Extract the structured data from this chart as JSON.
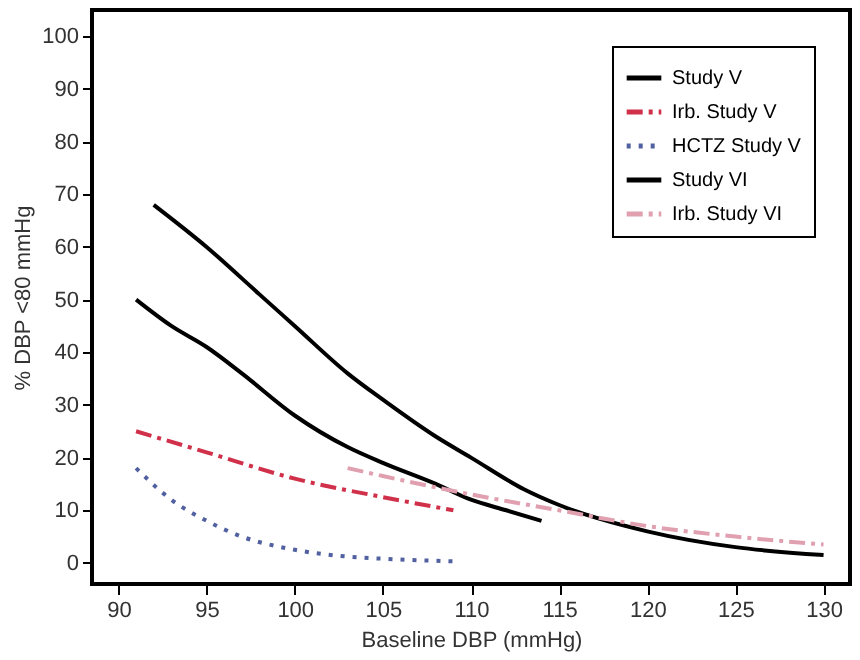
{
  "chart_data": {
    "type": "line",
    "xlabel": "Baseline DBP (mmHg)",
    "ylabel": "% DBP <80 mmHg",
    "xlim": [
      88.5,
      131.5
    ],
    "ylim": [
      -4,
      105
    ],
    "xticks": [
      90,
      95,
      100,
      105,
      110,
      115,
      120,
      125,
      130
    ],
    "yticks": [
      0,
      10,
      20,
      30,
      40,
      50,
      60,
      70,
      80,
      90,
      100
    ],
    "grid": false,
    "legend": "top right",
    "marker": "none",
    "series": [
      {
        "name": "Study V",
        "color": "#000000",
        "line_style": "solid",
        "x": [
          91,
          93,
          95,
          97,
          100,
          103,
          105,
          108,
          110,
          112,
          114
        ],
        "values": [
          50,
          45,
          41,
          36,
          28,
          22,
          19,
          15,
          12,
          10,
          8
        ]
      },
      {
        "name": "Irb. Study V",
        "color": "#d0304a",
        "line_style": "dashed",
        "x": [
          91,
          95,
          100,
          105,
          109
        ],
        "values": [
          25,
          21,
          16,
          12.5,
          10
        ]
      },
      {
        "name": "HCTZ Study V",
        "color": "#5060a0",
        "line_style": "dotted",
        "x": [
          91,
          93,
          95,
          97,
          100,
          103,
          105,
          109
        ],
        "values": [
          18,
          12,
          8,
          5,
          2.5,
          1.2,
          0.8,
          0.3
        ]
      },
      {
        "name": "Study VI",
        "color": "#000000",
        "line_style": "solid",
        "x": [
          92,
          95,
          98,
          100,
          103,
          105,
          108,
          110,
          113,
          115,
          120,
          125,
          130
        ],
        "values": [
          68,
          60,
          51,
          45,
          36,
          31,
          24,
          20,
          14,
          11,
          6,
          3,
          1.5
        ]
      },
      {
        "name": "Irb. Study VI",
        "color": "#e0a0b0",
        "line_style": "dashed",
        "x": [
          103,
          105,
          110,
          115,
          120,
          125,
          130
        ],
        "values": [
          18,
          16.5,
          13,
          10,
          7,
          5,
          3.5
        ]
      }
    ]
  }
}
